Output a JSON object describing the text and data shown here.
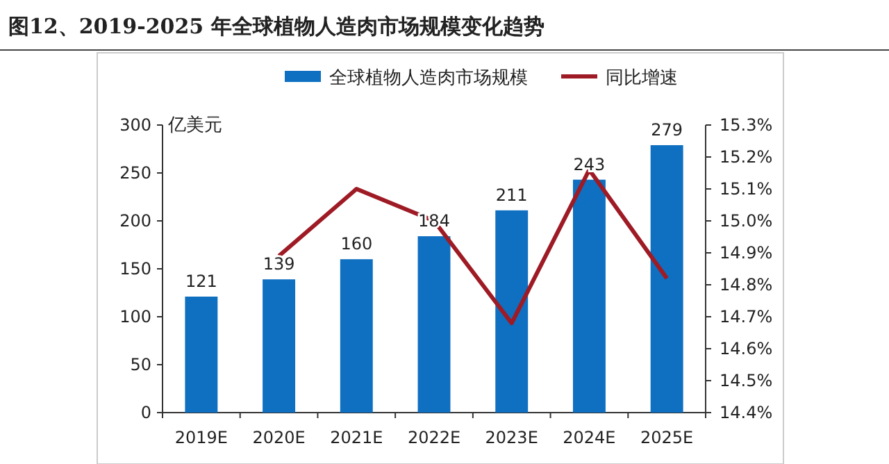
{
  "chart_data": {
    "type": "bar",
    "title": "图12、2019-2025 年全球植物人造肉市场规模变化趋势",
    "ylabel": "亿美元",
    "categories": [
      "2019E",
      "2020E",
      "2021E",
      "2022E",
      "2023E",
      "2024E",
      "2025E"
    ],
    "series": [
      {
        "name": "全球植物人造肉市场规模",
        "color": "#0f6fc0",
        "values": [
          121,
          139,
          160,
          184,
          211,
          243,
          279
        ],
        "value_labels": [
          "121",
          "139",
          "160",
          "184",
          "211",
          "243",
          "279"
        ]
      },
      {
        "name": "同比增速",
        "type": "line",
        "color": "#9e1b25",
        "axis": "y2",
        "values": [
          null,
          14.89,
          15.1,
          15.0,
          14.68,
          15.16,
          14.82
        ]
      }
    ],
    "ylim": [
      0,
      300
    ],
    "yticks": [
      0,
      50,
      100,
      150,
      200,
      250,
      300
    ],
    "y2lim": [
      14.4,
      15.3
    ],
    "y2ticks": [
      {
        "value": 14.4,
        "label": "14.4%"
      },
      {
        "value": 14.5,
        "label": "14.5%"
      },
      {
        "value": 14.6,
        "label": "14.6%"
      },
      {
        "value": 14.7,
        "label": "14.7%"
      },
      {
        "value": 14.8,
        "label": "14.8%"
      },
      {
        "value": 14.9,
        "label": "14.9%"
      },
      {
        "value": 15.0,
        "label": "15.0%"
      },
      {
        "value": 15.1,
        "label": "15.1%"
      },
      {
        "value": 15.2,
        "label": "15.2%"
      },
      {
        "value": 15.3,
        "label": "15.3%"
      }
    ],
    "grid": false,
    "legend": "top",
    "marker": "none",
    "line_style": "solid"
  }
}
